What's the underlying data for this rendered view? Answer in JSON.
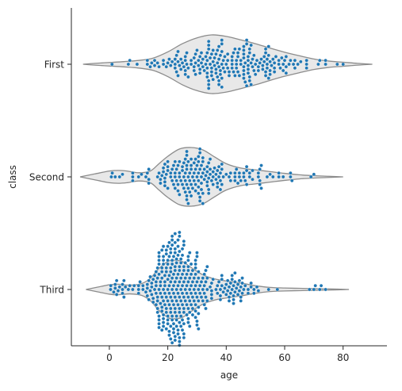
{
  "chart_data": {
    "type": "violin+swarm",
    "title": "",
    "xlabel": "age",
    "ylabel": "class",
    "xlim": [
      -13,
      95
    ],
    "xticks": [
      0,
      20,
      40,
      60,
      80
    ],
    "categories": [
      "First",
      "Second",
      "Third"
    ],
    "grid": false,
    "legend": "none",
    "colors": {
      "violin_fill": "#e8e8e8",
      "violin_edge": "#8c8c8c",
      "points": "#1f77b4",
      "axis": "#262626"
    },
    "violins": [
      {
        "category": "First",
        "min": -9,
        "max": 90,
        "density": [
          [
            -9,
            0.0
          ],
          [
            -5,
            0.03
          ],
          [
            0,
            0.06
          ],
          [
            5,
            0.09
          ],
          [
            10,
            0.13
          ],
          [
            15,
            0.21
          ],
          [
            20,
            0.42
          ],
          [
            25,
            0.7
          ],
          [
            30,
            0.9
          ],
          [
            35,
            1.0
          ],
          [
            40,
            0.95
          ],
          [
            45,
            0.83
          ],
          [
            50,
            0.7
          ],
          [
            55,
            0.55
          ],
          [
            60,
            0.41
          ],
          [
            65,
            0.29
          ],
          [
            70,
            0.18
          ],
          [
            75,
            0.11
          ],
          [
            80,
            0.07
          ],
          [
            85,
            0.03
          ],
          [
            90,
            0.0
          ]
        ]
      },
      {
        "category": "Second",
        "min": -10,
        "max": 80,
        "density": [
          [
            -10,
            0.0
          ],
          [
            -5,
            0.1
          ],
          [
            0,
            0.2
          ],
          [
            3,
            0.22
          ],
          [
            6,
            0.2
          ],
          [
            10,
            0.14
          ],
          [
            14,
            0.2
          ],
          [
            17,
            0.45
          ],
          [
            20,
            0.7
          ],
          [
            24,
            0.95
          ],
          [
            28,
            1.0
          ],
          [
            32,
            0.92
          ],
          [
            36,
            0.68
          ],
          [
            40,
            0.45
          ],
          [
            45,
            0.3
          ],
          [
            50,
            0.24
          ],
          [
            55,
            0.18
          ],
          [
            60,
            0.12
          ],
          [
            65,
            0.07
          ],
          [
            70,
            0.04
          ],
          [
            75,
            0.02
          ],
          [
            80,
            0.0
          ]
        ]
      },
      {
        "category": "Third",
        "min": -8,
        "max": 82,
        "density": [
          [
            -8,
            0.0
          ],
          [
            -4,
            0.08
          ],
          [
            0,
            0.16
          ],
          [
            3,
            0.18
          ],
          [
            7,
            0.15
          ],
          [
            11,
            0.2
          ],
          [
            14,
            0.38
          ],
          [
            17,
            0.72
          ],
          [
            20,
            0.95
          ],
          [
            22,
            1.0
          ],
          [
            25,
            0.95
          ],
          [
            28,
            0.75
          ],
          [
            32,
            0.5
          ],
          [
            36,
            0.36
          ],
          [
            40,
            0.29
          ],
          [
            45,
            0.22
          ],
          [
            50,
            0.13
          ],
          [
            55,
            0.07
          ],
          [
            60,
            0.05
          ],
          [
            65,
            0.04
          ],
          [
            70,
            0.03
          ],
          [
            75,
            0.02
          ],
          [
            82,
            0.0
          ]
        ]
      }
    ],
    "swarm_ranges": [
      {
        "category": "First",
        "min": 0.92,
        "max": 80
      },
      {
        "category": "Second",
        "min": 0.67,
        "max": 70
      },
      {
        "category": "Third",
        "min": 0.42,
        "max": 74
      }
    ]
  }
}
